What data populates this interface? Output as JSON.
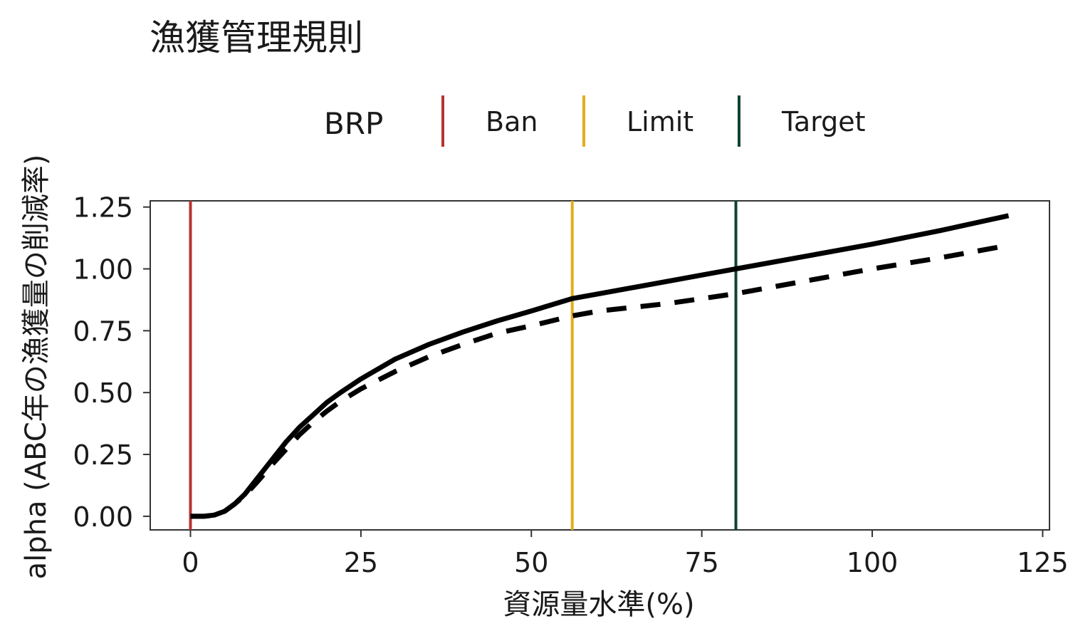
{
  "chart_data": {
    "type": "line",
    "title": "漁獲管理規則",
    "xlabel": "資源量水準(%)",
    "ylabel": "alpha (ABC年の漁獲量の削減率)",
    "xlim": [
      -5.9,
      126
    ],
    "ylim": [
      -0.055,
      1.275
    ],
    "x_ticks": [
      0,
      25,
      50,
      75,
      100,
      125
    ],
    "y_ticks": [
      0,
      0.25,
      0.5,
      0.75,
      1.0,
      1.25
    ],
    "x_tick_labels": [
      "0",
      "25",
      "50",
      "75",
      "100",
      "125"
    ],
    "y_tick_labels": [
      "0.00",
      "0.25",
      "0.50",
      "0.75",
      "1.00",
      "1.25"
    ],
    "grid": false,
    "legend": {
      "title": "BRP",
      "position": "top",
      "entries": [
        {
          "label": "Ban",
          "color": "#b83232"
        },
        {
          "label": "Limit",
          "color": "#e3ad1c"
        },
        {
          "label": "Target",
          "color": "#0e4430"
        }
      ]
    },
    "reference_lines": [
      {
        "label": "Ban",
        "x": 0,
        "color": "#b83232"
      },
      {
        "label": "Limit",
        "x": 56,
        "color": "#e3ad1c"
      },
      {
        "label": "Target",
        "x": 80,
        "color": "#0e4430"
      }
    ],
    "series": [
      {
        "style": "solid",
        "color": "#000000",
        "x": [
          0,
          2,
          3.5,
          5,
          6.5,
          8,
          10,
          12,
          14,
          16,
          18,
          20,
          22,
          25,
          30,
          35,
          40,
          45,
          50,
          56,
          60,
          70,
          80,
          90,
          100,
          110,
          120
        ],
        "y": [
          0,
          0,
          0.005,
          0.02,
          0.05,
          0.09,
          0.16,
          0.23,
          0.3,
          0.36,
          0.41,
          0.46,
          0.5,
          0.555,
          0.635,
          0.695,
          0.745,
          0.79,
          0.83,
          0.88,
          0.9,
          0.95,
          1.0,
          1.05,
          1.1,
          1.155,
          1.215
        ]
      },
      {
        "style": "dashed",
        "color": "#000000",
        "x": [
          0,
          2,
          3.5,
          5,
          6.5,
          8,
          10,
          12,
          14,
          16,
          18,
          20,
          22,
          25,
          30,
          35,
          40,
          45,
          50,
          56,
          60,
          70,
          80,
          90,
          100,
          110,
          120
        ],
        "y": [
          0,
          0,
          0.005,
          0.02,
          0.05,
          0.085,
          0.145,
          0.21,
          0.27,
          0.33,
          0.38,
          0.425,
          0.465,
          0.515,
          0.585,
          0.645,
          0.695,
          0.74,
          0.77,
          0.81,
          0.83,
          0.86,
          0.9,
          0.95,
          1.0,
          1.045,
          1.095
        ]
      }
    ]
  }
}
